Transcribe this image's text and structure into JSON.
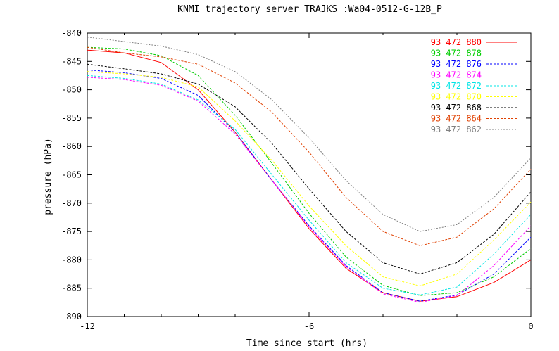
{
  "chart_data": {
    "type": "line",
    "title": "KNMI trajectory server TRAJKS :Wa04-0512-G-12B_P",
    "xlabel": "Time since start (hrs)",
    "ylabel": "pressure (hPa)",
    "xlim": [
      -12,
      0
    ],
    "ylim": [
      -890,
      -840
    ],
    "xticks": [
      -12,
      -6,
      0
    ],
    "yticks": [
      -840,
      -845,
      -850,
      -855,
      -860,
      -865,
      -870,
      -875,
      -880,
      -885,
      -890
    ],
    "xtick_labels": [
      "-12",
      "-6",
      "0"
    ],
    "ytick_labels": [
      "-840",
      "-845",
      "-850",
      "-855",
      "-860",
      "-865",
      "-870",
      "-875",
      "-880",
      "-885",
      "-890"
    ],
    "legend_position": "top-right",
    "x": [
      -12,
      -11,
      -10,
      -9,
      -8,
      -7,
      -6,
      -5,
      -4,
      -3,
      -2,
      -1,
      0
    ],
    "series": [
      {
        "name": "93 472 880",
        "color": "#ff0000",
        "dash": "solid",
        "values": [
          -843,
          -843.5,
          -845.2,
          -850,
          -857.5,
          -866,
          -874.5,
          -881.5,
          -885.8,
          -887.3,
          -886.5,
          -884,
          -880
        ]
      },
      {
        "name": "93 472 878",
        "color": "#00cc00",
        "dash": "dashed",
        "values": [
          -842.5,
          -842.8,
          -844,
          -847.5,
          -854.5,
          -863,
          -871.8,
          -879.5,
          -884.5,
          -886.3,
          -885.8,
          -883,
          -878
        ]
      },
      {
        "name": "93 472 876",
        "color": "#0000ff",
        "dash": "dashed",
        "values": [
          -846.5,
          -847,
          -848,
          -851,
          -857.5,
          -866,
          -874,
          -881,
          -885.8,
          -887.3,
          -886.2,
          -882.5,
          -876
        ]
      },
      {
        "name": "93 472 874",
        "color": "#ff00ff",
        "dash": "dashed",
        "values": [
          -847.8,
          -848.2,
          -849.2,
          -852,
          -857.8,
          -866,
          -874.2,
          -881.2,
          -886,
          -887.5,
          -886.3,
          -881,
          -874
        ]
      },
      {
        "name": "93 472 872",
        "color": "#00e5e5",
        "dash": "dashed",
        "values": [
          -847.5,
          -848,
          -849,
          -851.8,
          -857,
          -865,
          -873,
          -880.5,
          -885,
          -886.2,
          -884.8,
          -879,
          -872
        ]
      },
      {
        "name": "93 472 870",
        "color": "#ffff00",
        "dash": "dashed",
        "values": [
          -846.8,
          -847.2,
          -847.8,
          -849.5,
          -855.5,
          -862.5,
          -870.5,
          -877.5,
          -883,
          -884.6,
          -882.5,
          -876.5,
          -869.8
        ]
      },
      {
        "name": "93 472 868",
        "color": "#000000",
        "dash": "dashed",
        "values": [
          -845.5,
          -846.3,
          -847.2,
          -849,
          -853,
          -859.5,
          -867.5,
          -875,
          -880.5,
          -882.5,
          -880.5,
          -875.5,
          -868
        ]
      },
      {
        "name": "93 472 864",
        "color": "#e04000",
        "dash": "dashed",
        "values": [
          -842.5,
          -843.5,
          -844.2,
          -845.5,
          -848.8,
          -854,
          -861,
          -869,
          -875,
          -877.5,
          -876,
          -871,
          -864
        ]
      },
      {
        "name": "93 472 862",
        "color": "#808080",
        "dash": "dotted",
        "values": [
          -840.7,
          -841.5,
          -842.3,
          -843.8,
          -846.8,
          -851.8,
          -858.5,
          -866,
          -872,
          -875,
          -873.8,
          -869,
          -862
        ]
      }
    ]
  }
}
